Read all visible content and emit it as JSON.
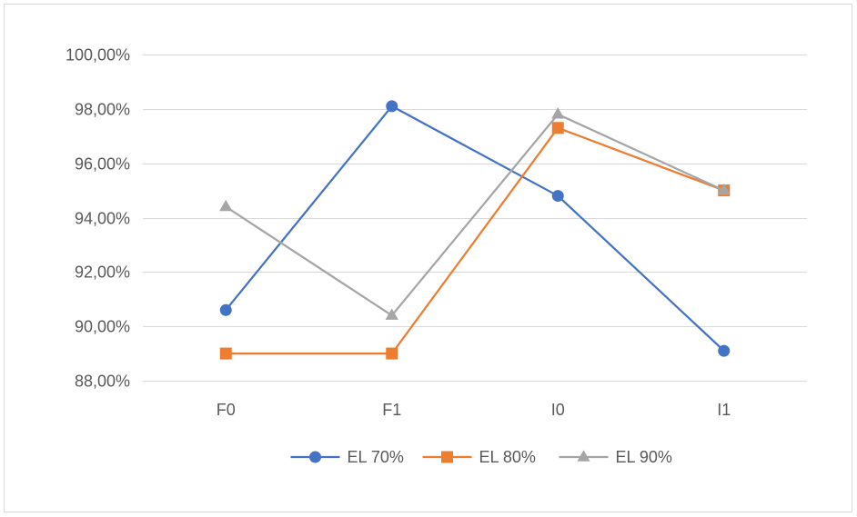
{
  "chart_data": {
    "type": "line",
    "title": "",
    "xlabel": "",
    "ylabel": "",
    "categories": [
      "F0",
      "F1",
      "I0",
      "I1"
    ],
    "ylim": [
      0.88,
      1.0
    ],
    "ytick_values": [
      0.88,
      0.9,
      0.92,
      0.94,
      0.96,
      0.98,
      1.0
    ],
    "ytick_labels": [
      "88,00%",
      "90,00%",
      "92,00%",
      "94,00%",
      "96,00%",
      "98,00%",
      "100,00%"
    ],
    "grid": true,
    "legend_position": "bottom",
    "series": [
      {
        "name": "EL 70%",
        "color": "#4472C4",
        "marker": "circle",
        "values": [
          0.906,
          0.981,
          0.948,
          0.891
        ]
      },
      {
        "name": "EL 80%",
        "color": "#ED7D31",
        "marker": "square",
        "values": [
          0.89,
          0.89,
          0.973,
          0.95
        ]
      },
      {
        "name": "EL 90%",
        "color": "#A5A5A5",
        "marker": "triangle",
        "values": [
          0.944,
          0.904,
          0.978,
          0.95
        ]
      }
    ]
  }
}
